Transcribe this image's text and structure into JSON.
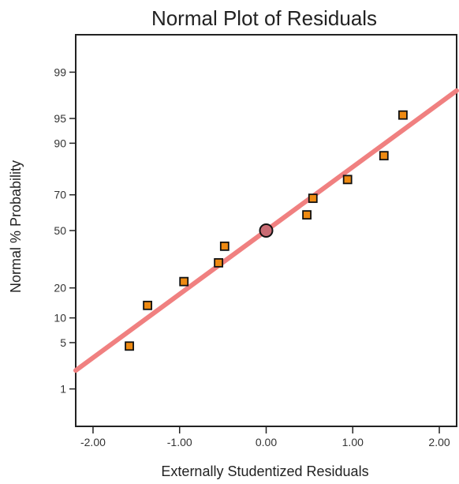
{
  "chart_data": {
    "type": "scatter",
    "title": "Normal Plot of Residuals",
    "xlabel": "Externally Studentized Residuals",
    "ylabel": "Normal % Probability",
    "xlim": [
      -2.2,
      2.2
    ],
    "y_scale": "normal-probability",
    "ylim": [
      0.2,
      99.8
    ],
    "x_ticks": [
      {
        "value": -2,
        "label": "-2.00"
      },
      {
        "value": -1,
        "label": "-1.00"
      },
      {
        "value": 0,
        "label": "0.00"
      },
      {
        "value": 1,
        "label": "1.00"
      },
      {
        "value": 2,
        "label": "2.00"
      }
    ],
    "y_ticks": [
      {
        "value": 1,
        "label": "1"
      },
      {
        "value": 5,
        "label": "5"
      },
      {
        "value": 10,
        "label": "10"
      },
      {
        "value": 20,
        "label": "20"
      },
      {
        "value": 50,
        "label": "50"
      },
      {
        "value": 70,
        "label": "70"
      },
      {
        "value": 90,
        "label": "90"
      },
      {
        "value": 95,
        "label": "95"
      },
      {
        "value": 99,
        "label": "99"
      }
    ],
    "points": [
      {
        "x": -1.58,
        "y": 4.5
      },
      {
        "x": -1.37,
        "y": 13.6
      },
      {
        "x": -0.95,
        "y": 22.7
      },
      {
        "x": -0.55,
        "y": 31.8
      },
      {
        "x": -0.48,
        "y": 40.9
      },
      {
        "x": 0.47,
        "y": 59.1
      },
      {
        "x": 0.54,
        "y": 68.2
      },
      {
        "x": 0.94,
        "y": 77.3
      },
      {
        "x": 1.36,
        "y": 86.4
      },
      {
        "x": 1.58,
        "y": 95.5
      }
    ],
    "center_point": {
      "x": 0.0,
      "y": 50.0
    },
    "reference_line": {
      "x1": -2.2,
      "x2": 2.2,
      "y1": 2.0,
      "y2": 98.0
    },
    "colors": {
      "point_fill": "#ee8a12",
      "point_stroke": "#111111",
      "center_point_fill": "#c96b73",
      "line": "#f08080",
      "frame": "#222222",
      "background": "#ffffff"
    },
    "grid": false,
    "legend": "none"
  }
}
